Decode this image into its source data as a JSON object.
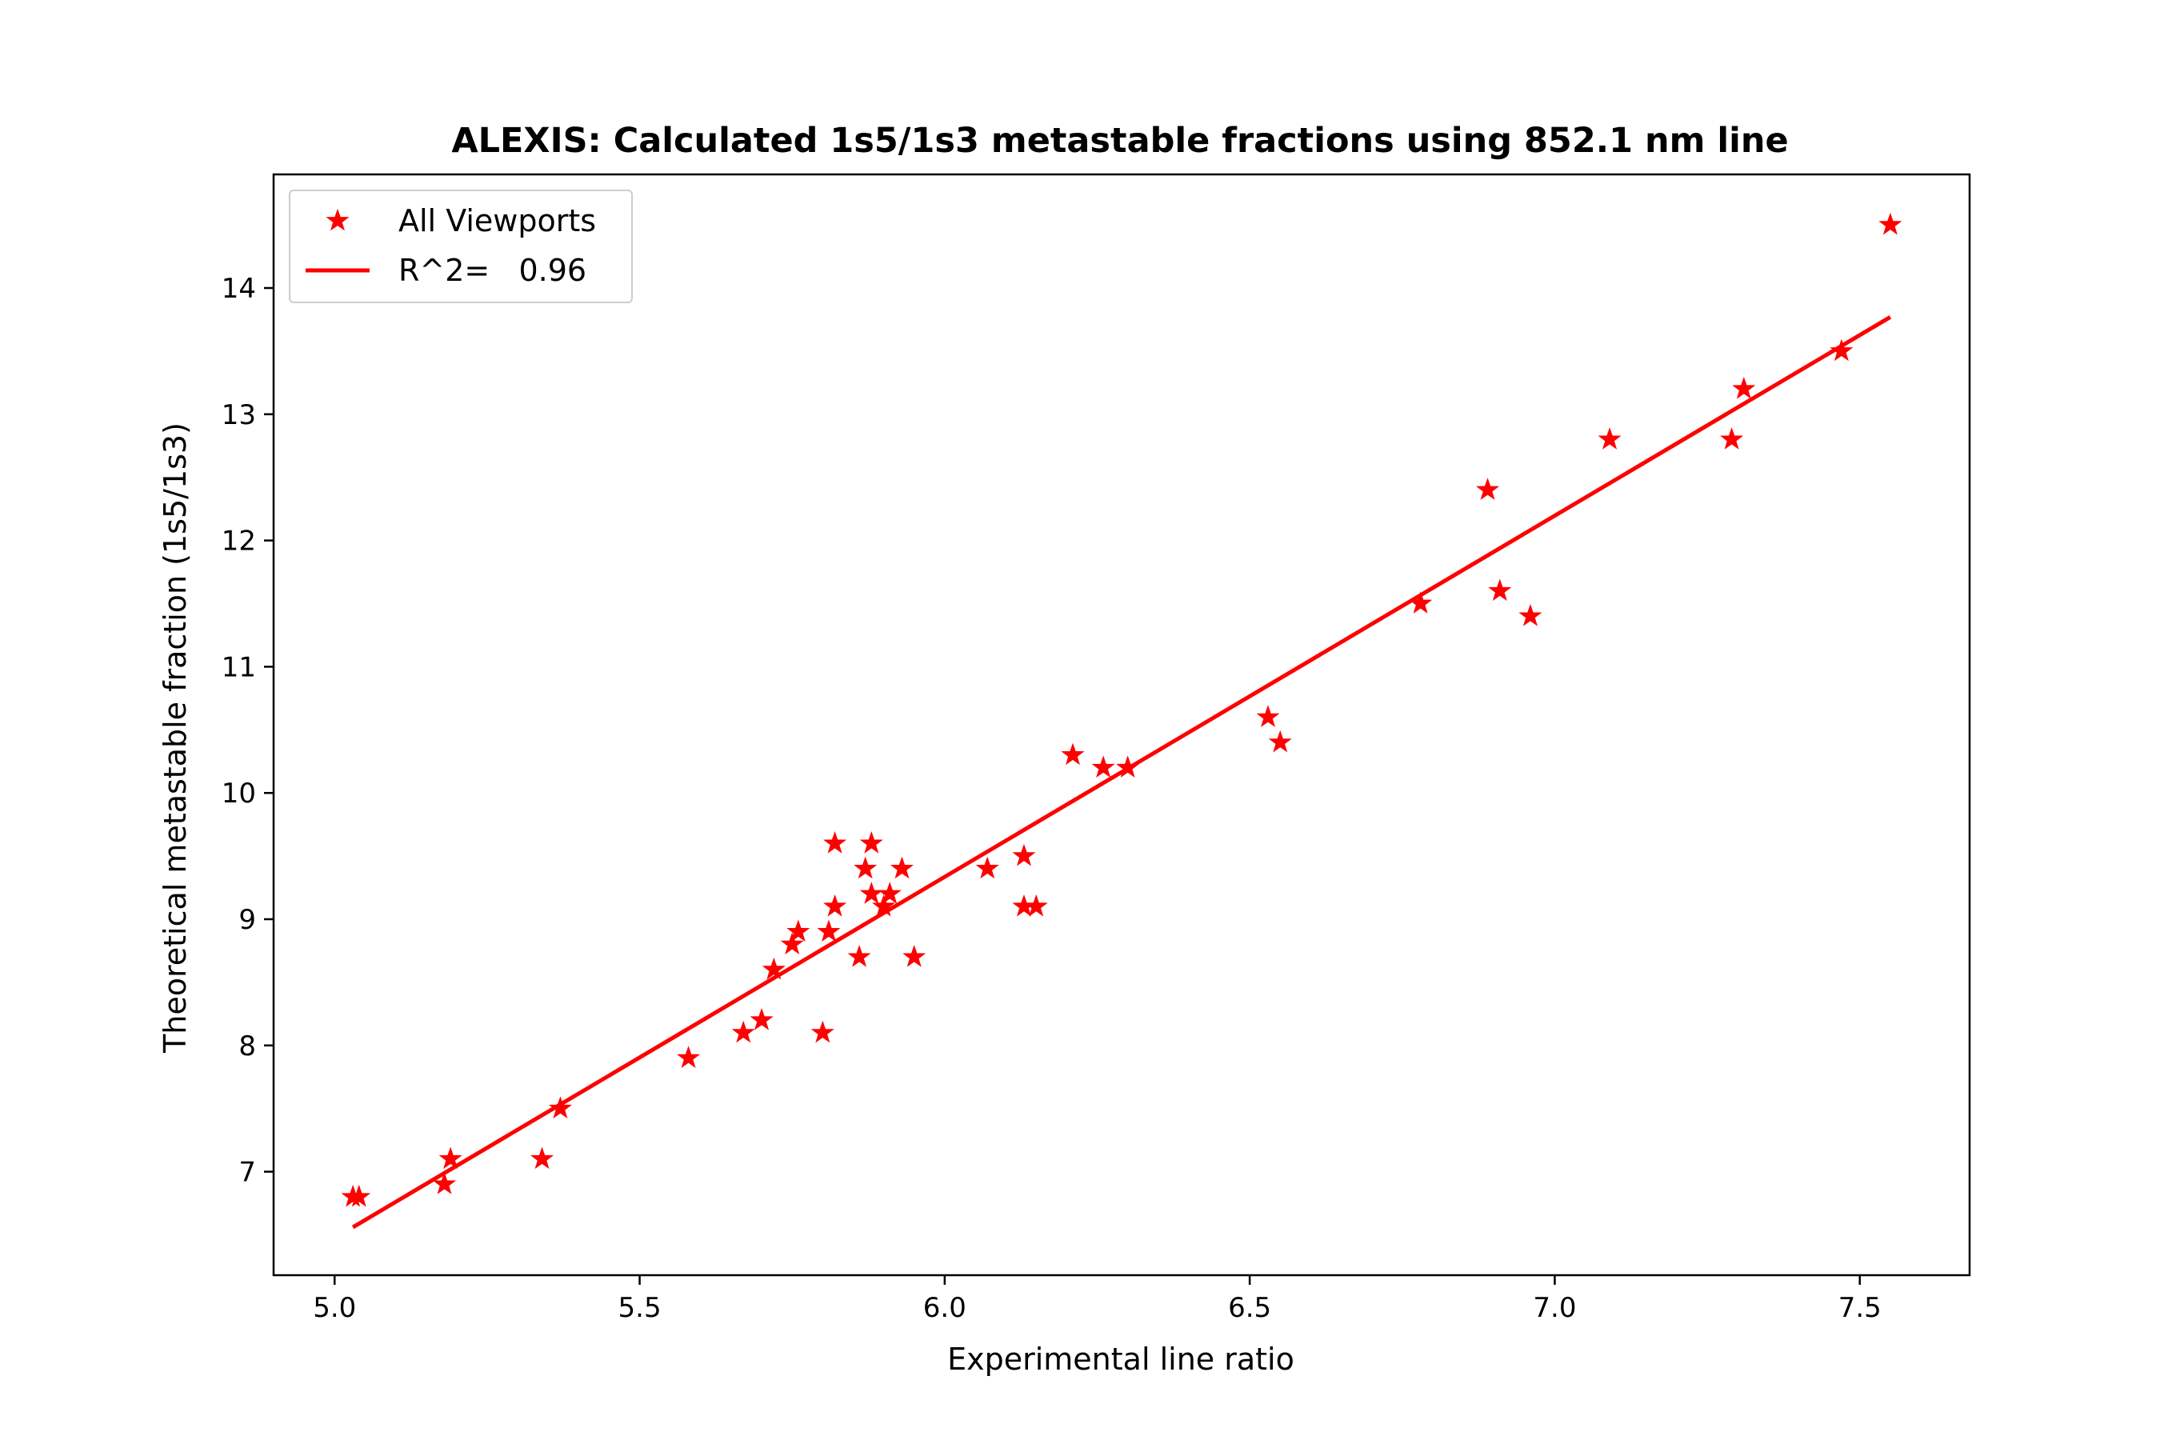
{
  "chart_data": {
    "type": "scatter",
    "title": "ALEXIS: Calculated 1s5/1s3 metastable fractions using 852.1 nm line",
    "xlabel": "Experimental line ratio",
    "ylabel": "Theoretical metastable fraction (1s5/1s3)",
    "xlim": [
      4.9,
      7.68
    ],
    "ylim": [
      6.18,
      14.9
    ],
    "xticks": [
      5.0,
      5.5,
      6.0,
      6.5,
      7.0,
      7.5
    ],
    "xtick_labels": [
      "5.0",
      "5.5",
      "6.0",
      "6.5",
      "7.0",
      "7.5"
    ],
    "yticks": [
      7,
      8,
      9,
      10,
      11,
      12,
      13,
      14
    ],
    "ytick_labels": [
      "7",
      "8",
      "9",
      "10",
      "11",
      "12",
      "13",
      "14"
    ],
    "grid": false,
    "legend_position": "top-left",
    "color": "#ff0000",
    "series": [
      {
        "name": "All Viewports",
        "marker": "star",
        "points": [
          [
            5.03,
            6.8
          ],
          [
            5.04,
            6.8
          ],
          [
            5.18,
            6.9
          ],
          [
            5.19,
            7.1
          ],
          [
            5.34,
            7.1
          ],
          [
            5.37,
            7.5
          ],
          [
            5.58,
            7.9
          ],
          [
            5.67,
            8.1
          ],
          [
            5.7,
            8.2
          ],
          [
            5.72,
            8.6
          ],
          [
            5.75,
            8.8
          ],
          [
            5.76,
            8.9
          ],
          [
            5.8,
            8.1
          ],
          [
            5.81,
            8.9
          ],
          [
            5.82,
            9.1
          ],
          [
            5.82,
            9.6
          ],
          [
            5.86,
            8.7
          ],
          [
            5.87,
            9.4
          ],
          [
            5.88,
            9.2
          ],
          [
            5.88,
            9.6
          ],
          [
            5.9,
            9.1
          ],
          [
            5.91,
            9.2
          ],
          [
            5.93,
            9.4
          ],
          [
            5.95,
            8.7
          ],
          [
            6.07,
            9.4
          ],
          [
            6.13,
            9.1
          ],
          [
            6.13,
            9.5
          ],
          [
            6.15,
            9.1
          ],
          [
            6.21,
            10.3
          ],
          [
            6.26,
            10.2
          ],
          [
            6.3,
            10.2
          ],
          [
            6.53,
            10.6
          ],
          [
            6.55,
            10.4
          ],
          [
            6.78,
            11.5
          ],
          [
            6.89,
            12.4
          ],
          [
            6.91,
            11.6
          ],
          [
            6.96,
            11.4
          ],
          [
            7.09,
            12.8
          ],
          [
            7.29,
            12.8
          ],
          [
            7.31,
            13.2
          ],
          [
            7.47,
            13.5
          ],
          [
            7.55,
            14.5
          ]
        ]
      },
      {
        "name": "R^2=   0.96",
        "line": true,
        "points": [
          [
            5.03,
            6.56
          ],
          [
            7.55,
            13.77
          ]
        ]
      }
    ]
  }
}
